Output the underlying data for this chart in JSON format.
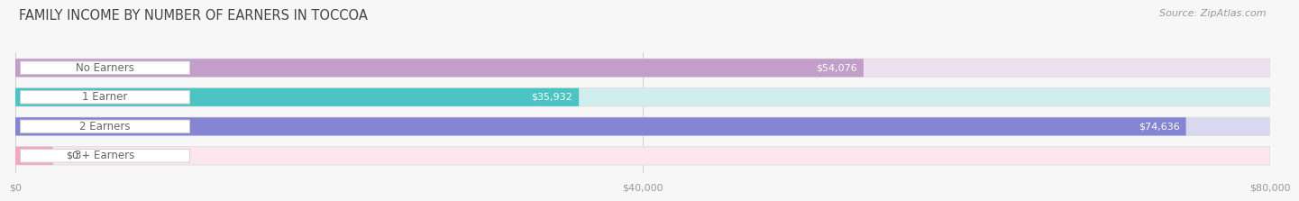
{
  "title": "FAMILY INCOME BY NUMBER OF EARNERS IN TOCCOA",
  "source": "Source: ZipAtlas.com",
  "categories": [
    "No Earners",
    "1 Earner",
    "2 Earners",
    "3+ Earners"
  ],
  "values": [
    54076,
    35932,
    74636,
    0
  ],
  "bar_colors": [
    "#c49eca",
    "#4dc4c4",
    "#8585d4",
    "#f4a8bf"
  ],
  "bar_bg_colors": [
    "#ede0f0",
    "#d0eeee",
    "#d8d8f0",
    "#fde6ee"
  ],
  "xlim": [
    0,
    80000
  ],
  "xticks": [
    0,
    40000,
    80000
  ],
  "xtick_labels": [
    "$0",
    "$40,000",
    "$80,000"
  ],
  "value_labels": [
    "$54,076",
    "$35,932",
    "$74,636",
    "$0"
  ],
  "title_fontsize": 10.5,
  "label_fontsize": 8.5,
  "tick_fontsize": 8,
  "source_fontsize": 8,
  "bg_color": "#f7f7f7",
  "bar_height": 0.62,
  "label_color": "#555555",
  "pill_label_color": "#666666"
}
